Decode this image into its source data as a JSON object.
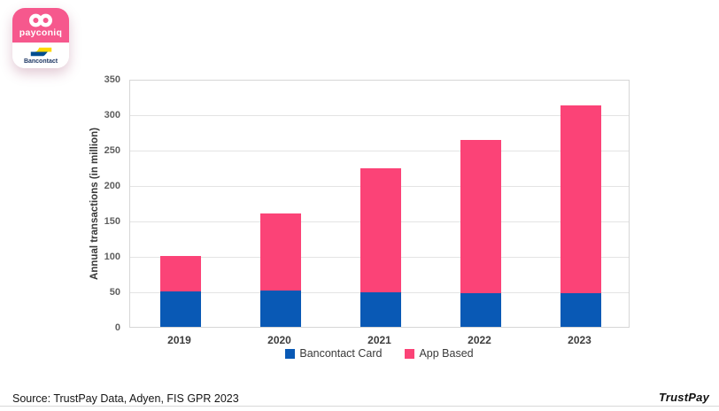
{
  "logo": {
    "payconiq_label": "payconiq",
    "bancontact_label": "Bancontact",
    "pink": "#F6588D",
    "navy": "#1E3764",
    "blue": "#004E91",
    "yellow": "#FFD800"
  },
  "chart_data": {
    "type": "bar",
    "stacked": true,
    "categories": [
      "2019",
      "2020",
      "2021",
      "2022",
      "2023"
    ],
    "series": [
      {
        "name": "Bancontact Card",
        "color": "#0959B5",
        "values": [
          50,
          51,
          49,
          48,
          47
        ]
      },
      {
        "name": "App Based",
        "color": "#FB4377",
        "values": [
          50,
          109,
          175,
          216,
          266
        ]
      }
    ],
    "totals": [
      100,
      160,
      224,
      264,
      313
    ],
    "title": "",
    "xlabel": "",
    "ylabel": "Annual transactions (in million)",
    "ylim": [
      0,
      350
    ],
    "yticks": [
      0,
      50,
      100,
      150,
      200,
      250,
      300,
      350
    ],
    "grid": true,
    "legend_position": "bottom"
  },
  "footer": {
    "source": "Source: TrustPay Data, Adyen, FIS GPR 2023",
    "brand": "TrustPay"
  }
}
